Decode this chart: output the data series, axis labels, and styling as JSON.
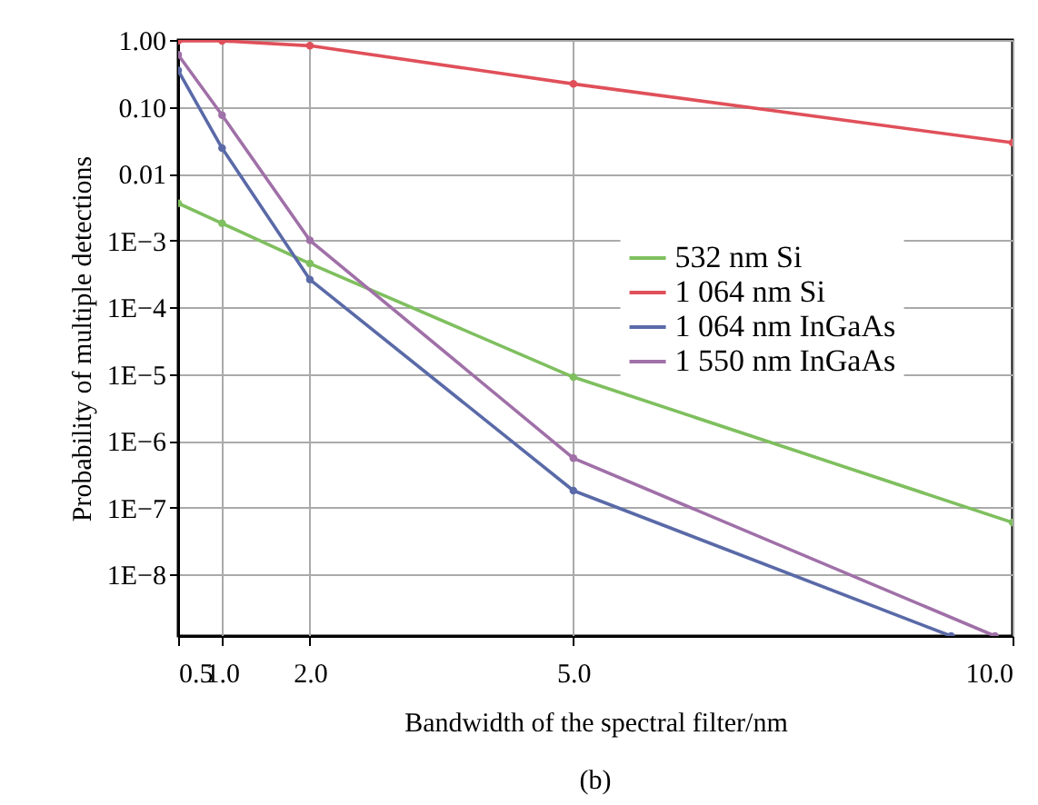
{
  "chart_data": {
    "type": "line",
    "xlabel": "Bandwidth of the spectral filter/nm",
    "ylabel": "Probability of multiple detections",
    "annotations": [
      "(b)"
    ],
    "log": "y",
    "grid": true,
    "legend": "right",
    "marker": "circle",
    "line_style": "solid",
    "xlim": [
      0.5,
      10
    ],
    "xticks": [
      {
        "value": 0.5,
        "label": "0.5"
      },
      {
        "value": 1,
        "label": "1.0"
      },
      {
        "value": 2,
        "label": "2.0"
      },
      {
        "value": 5,
        "label": "5.0"
      },
      {
        "value": 10,
        "label": "10.0"
      }
    ],
    "ylim": [
      1.2e-09,
      1
    ],
    "yticks": [
      {
        "value": 1,
        "label": "1.00"
      },
      {
        "value": 0.1,
        "label": "0.10"
      },
      {
        "value": 0.01,
        "label": "0.01"
      },
      {
        "value": 0.001,
        "label": "1E−3"
      },
      {
        "value": 0.0001,
        "label": "1E−4"
      },
      {
        "value": 1e-05,
        "label": "1E−5"
      },
      {
        "value": 1e-06,
        "label": "1E−6"
      },
      {
        "value": 1e-07,
        "label": "1E−7"
      },
      {
        "value": 1e-08,
        "label": "1E−8"
      }
    ],
    "x": [
      0.5,
      1,
      2,
      5,
      10
    ],
    "series": [
      {
        "name": "532 nm Si",
        "color": "#7fbf5f",
        "values": [
          0.0036,
          0.0018,
          0.00045,
          9e-06,
          6e-08
        ]
      },
      {
        "name": "1 064 nm Si",
        "color": "#e0505a",
        "values": [
          0.97,
          0.97,
          0.82,
          0.22,
          0.029
        ]
      },
      {
        "name": "1 064 nm InGaAs",
        "color": "#5a6aa8",
        "x": [
          0.5,
          1,
          2,
          5,
          9.3
        ],
        "values": [
          0.35,
          0.024,
          0.00026,
          1.8e-07,
          1.2e-09
        ]
      },
      {
        "name": "1 550 nm InGaAs",
        "color": "#a070a8",
        "x": [
          0.5,
          1,
          2,
          5,
          9.8
        ],
        "values": [
          0.6,
          0.075,
          0.001,
          5.5e-07,
          1.2e-09
        ]
      }
    ]
  }
}
